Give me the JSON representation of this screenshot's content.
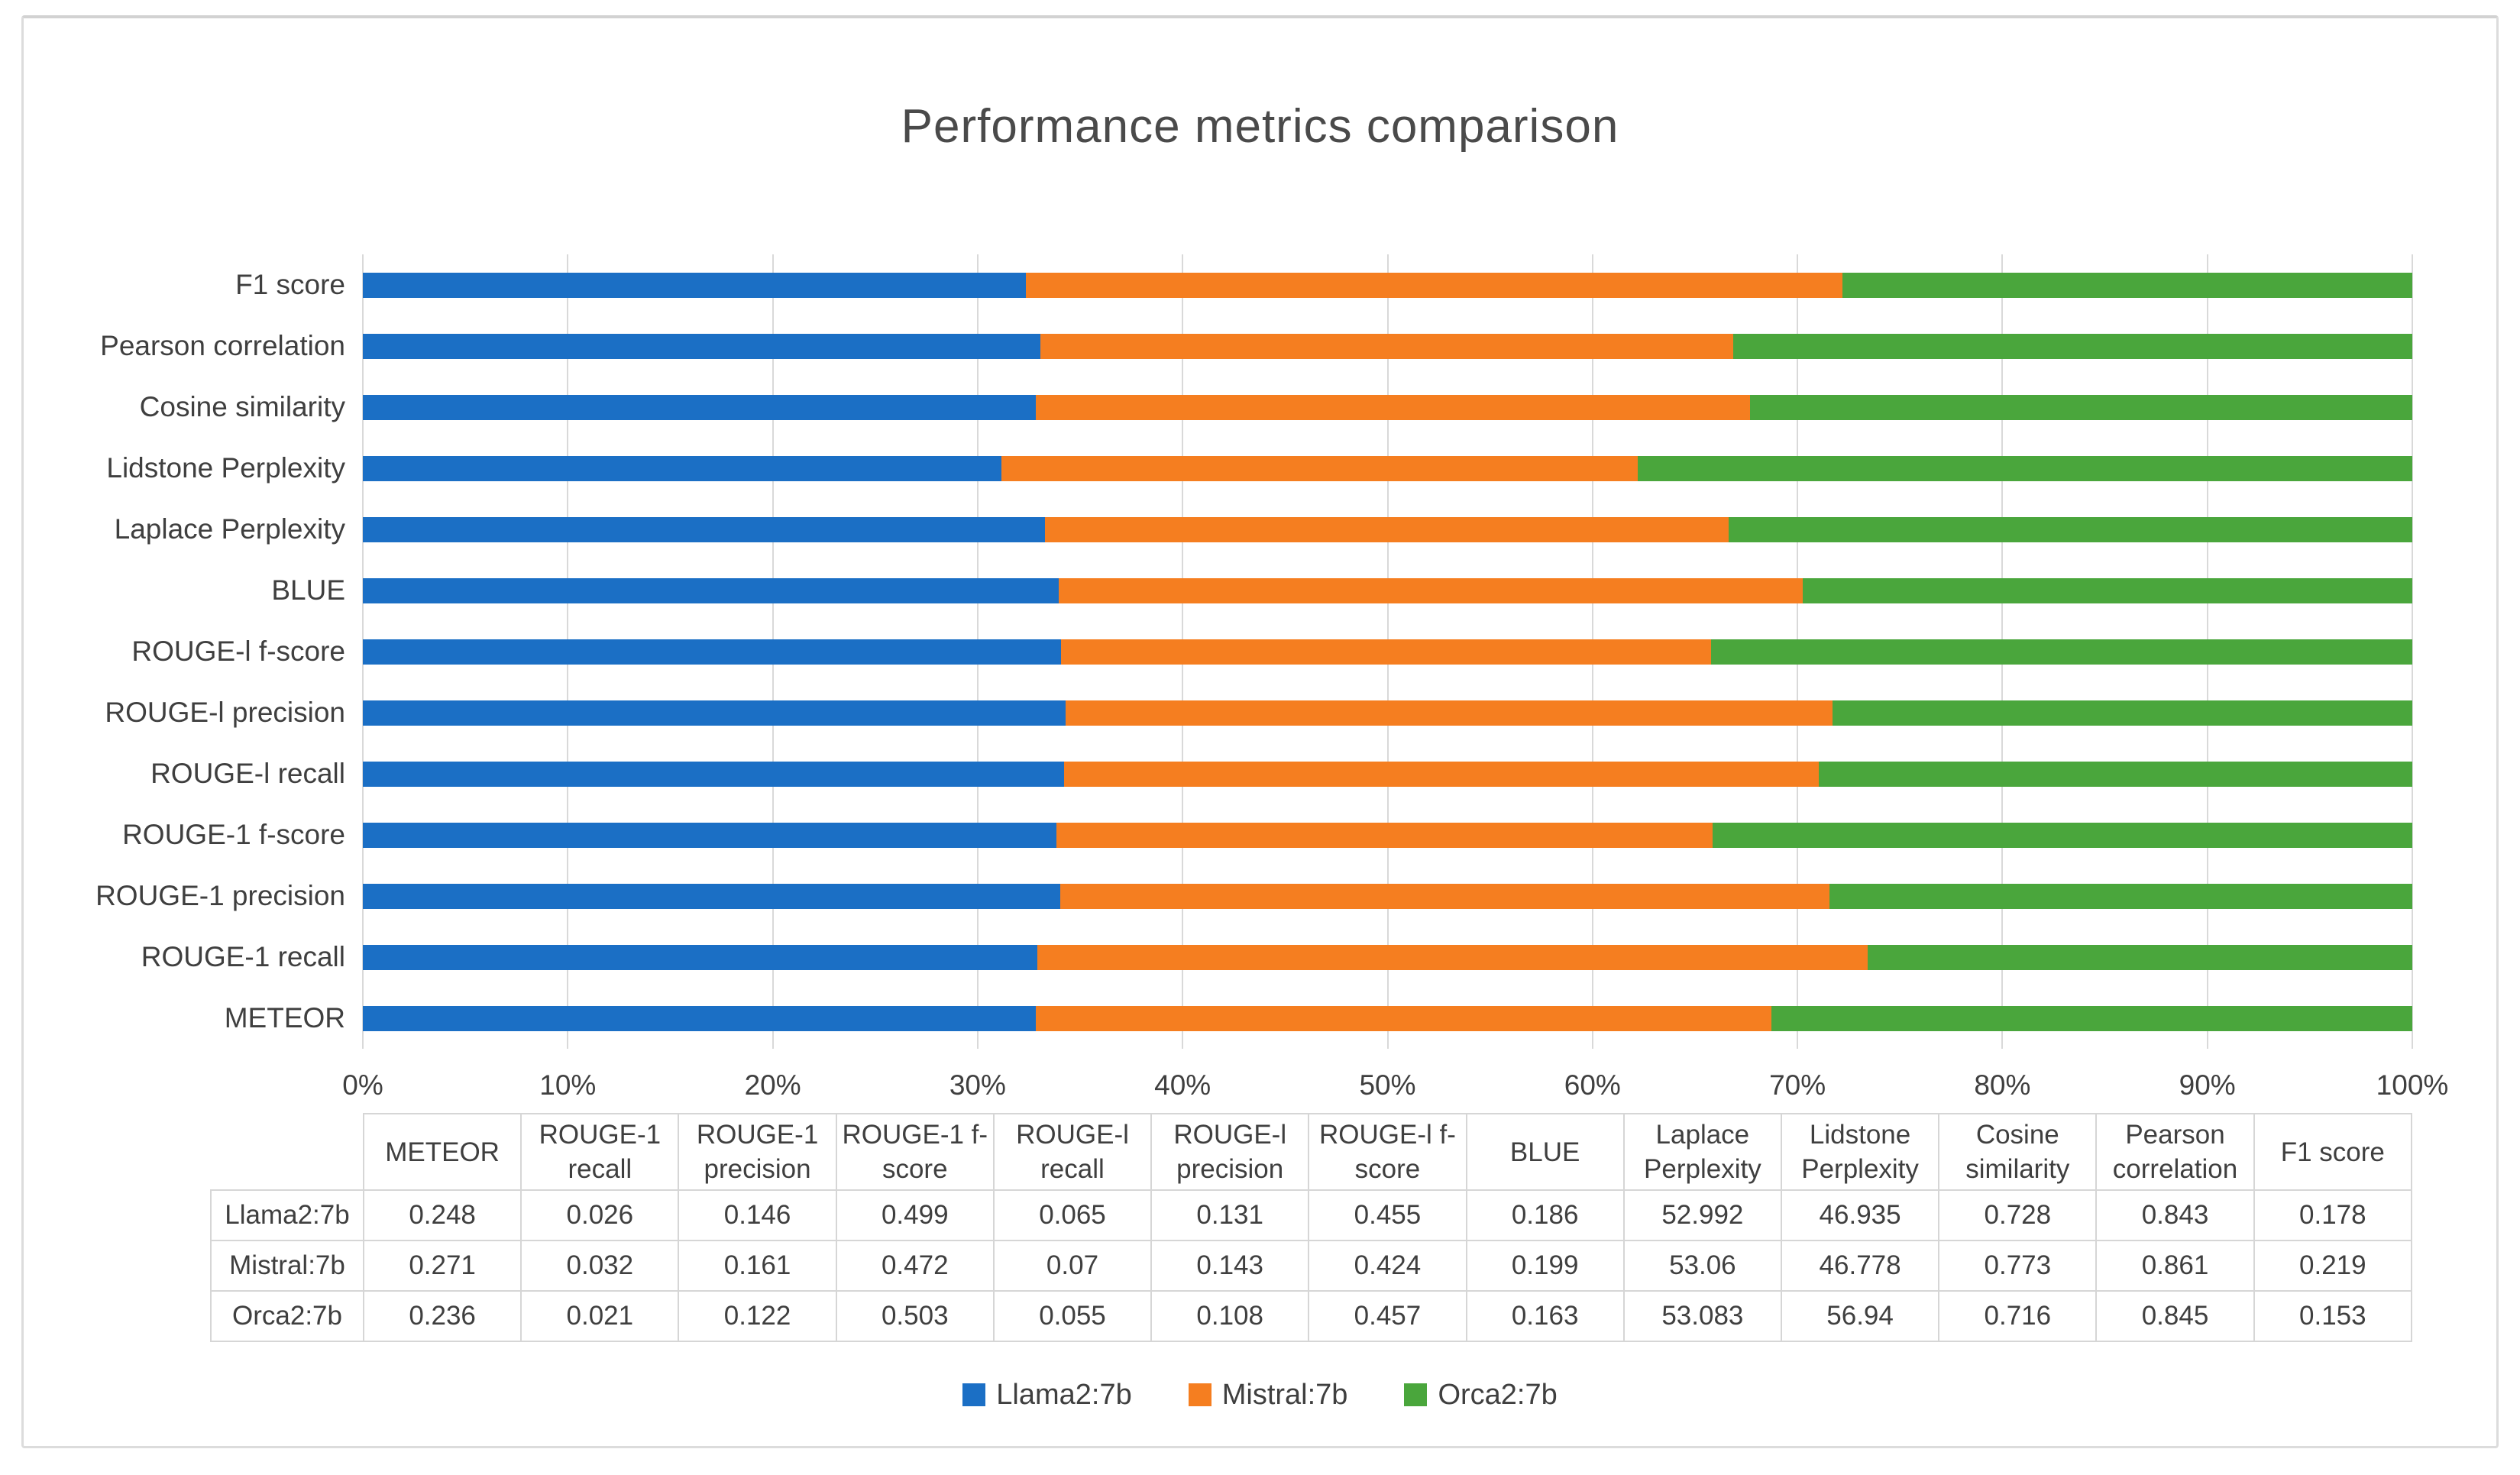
{
  "chart_data": {
    "type": "bar",
    "subtype": "100%-stacked-horizontal",
    "title": "Performance metrics comparison",
    "categories": [
      "METEOR",
      "ROUGE-1 recall",
      "ROUGE-1 precision",
      "ROUGE-1 f-score",
      "ROUGE-l recall",
      "ROUGE-l precision",
      "ROUGE-l f-score",
      "BLUE",
      "Laplace Perplexity",
      "Lidstone Perplexity",
      "Cosine similarity",
      "Pearson correlation",
      "F1 score"
    ],
    "category_axis_order": "bottom-to-top",
    "series": [
      {
        "name": "Llama2:7b",
        "color": "#1B6FC5",
        "values": [
          0.248,
          0.026,
          0.146,
          0.499,
          0.065,
          0.131,
          0.455,
          0.186,
          52.992,
          46.935,
          0.728,
          0.843,
          0.178
        ]
      },
      {
        "name": "Mistral:7b",
        "color": "#F57E20",
        "values": [
          0.271,
          0.032,
          0.161,
          0.472,
          0.07,
          0.143,
          0.424,
          0.199,
          53.06,
          46.778,
          0.773,
          0.861,
          0.219
        ]
      },
      {
        "name": "Orca2:7b",
        "color": "#4AA63C",
        "values": [
          0.236,
          0.021,
          0.122,
          0.503,
          0.055,
          0.108,
          0.457,
          0.163,
          53.083,
          56.94,
          0.716,
          0.845,
          0.153
        ]
      }
    ],
    "x_axis": {
      "ticks": [
        "0%",
        "10%",
        "20%",
        "30%",
        "40%",
        "50%",
        "60%",
        "70%",
        "80%",
        "90%",
        "100%"
      ],
      "min": 0,
      "max": 100,
      "gridlines": true
    },
    "legend": {
      "position": "bottom",
      "entries": [
        "Llama2:7b",
        "Mistral:7b",
        "Orca2:7b"
      ]
    },
    "data_table": {
      "shown": true,
      "corner_label": ""
    }
  },
  "colors": {
    "grid": "#D9D9D9",
    "frame_border": "#DCDCDC",
    "table_border": "#D6D6D6",
    "text": "#3F3F3F",
    "title_text": "#4A4A4A",
    "background": "#FFFFFF"
  }
}
